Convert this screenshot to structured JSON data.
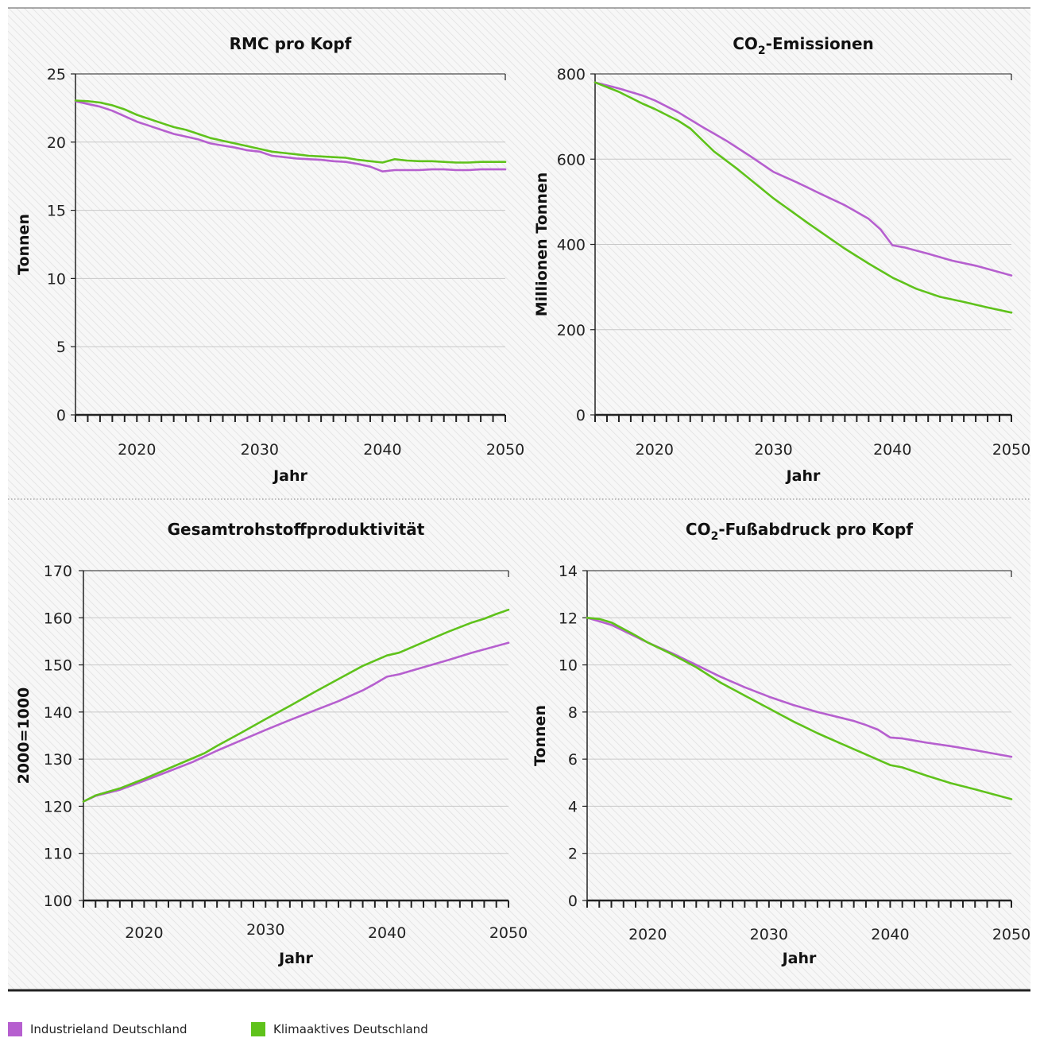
{
  "legend": [
    {
      "label": "Industrieland Deutschland",
      "color": "#b65fcf"
    },
    {
      "label": "Klimaaktives Deutschland",
      "color": "#5fc21b"
    }
  ],
  "chart_data": [
    {
      "type": "line",
      "title": "RMC pro Kopf",
      "xlabel": "Jahr",
      "ylabel": "Tonnen",
      "xlim": [
        2015,
        2050
      ],
      "ylim": [
        0,
        25
      ],
      "yticks": [
        0,
        5,
        10,
        15,
        20,
        25
      ],
      "xticks": [
        2020,
        2030,
        2040,
        2050
      ],
      "grid": true,
      "series": [
        {
          "name": "Industrieland Deutschland",
          "color": "#b65fcf",
          "x": [
            2015,
            2016,
            2017,
            2018,
            2019,
            2020,
            2021,
            2022,
            2023,
            2024,
            2025,
            2026,
            2027,
            2028,
            2029,
            2030,
            2031,
            2032,
            2033,
            2034,
            2035,
            2036,
            2037,
            2038,
            2039,
            2040,
            2041,
            2042,
            2043,
            2044,
            2045,
            2046,
            2047,
            2048,
            2049,
            2050
          ],
          "y": [
            23.0,
            22.8,
            22.6,
            22.3,
            21.9,
            21.5,
            21.2,
            20.9,
            20.6,
            20.4,
            20.2,
            19.9,
            19.75,
            19.6,
            19.4,
            19.3,
            19.0,
            18.9,
            18.8,
            18.75,
            18.7,
            18.6,
            18.55,
            18.4,
            18.2,
            17.85,
            17.95,
            17.95,
            17.95,
            18.0,
            18.0,
            17.95,
            17.95,
            18.0,
            18.0,
            18.0
          ]
        },
        {
          "name": "Klimaaktives Deutschland",
          "color": "#5fc21b",
          "x": [
            2015,
            2016,
            2017,
            2018,
            2019,
            2020,
            2021,
            2022,
            2023,
            2024,
            2025,
            2026,
            2027,
            2028,
            2029,
            2030,
            2031,
            2032,
            2033,
            2034,
            2035,
            2036,
            2037,
            2038,
            2039,
            2040,
            2041,
            2042,
            2043,
            2044,
            2045,
            2046,
            2047,
            2048,
            2049,
            2050
          ],
          "y": [
            23.05,
            23.0,
            22.9,
            22.7,
            22.4,
            22.0,
            21.7,
            21.4,
            21.1,
            20.9,
            20.6,
            20.3,
            20.1,
            19.9,
            19.7,
            19.5,
            19.3,
            19.2,
            19.1,
            19.0,
            18.95,
            18.9,
            18.85,
            18.7,
            18.6,
            18.5,
            18.75,
            18.65,
            18.6,
            18.6,
            18.55,
            18.5,
            18.5,
            18.55,
            18.55,
            18.55
          ]
        }
      ]
    },
    {
      "type": "line",
      "title": "CO₂-Emissionen",
      "xlabel": "Jahr",
      "ylabel": "Millionen Tonnen",
      "xlim": [
        2015,
        2050
      ],
      "ylim": [
        0,
        800
      ],
      "yticks": [
        0,
        200,
        400,
        600,
        800
      ],
      "xticks": [
        2020,
        2030,
        2040,
        2050
      ],
      "grid": true,
      "series": [
        {
          "name": "Industrieland Deutschland",
          "color": "#b65fcf",
          "x": [
            2015,
            2017,
            2019,
            2020,
            2022,
            2024,
            2026,
            2028,
            2030,
            2032,
            2034,
            2036,
            2038,
            2039,
            2040,
            2041,
            2043,
            2045,
            2047,
            2050
          ],
          "y": [
            780,
            766,
            749,
            738,
            710,
            676,
            644,
            608,
            570,
            545,
            518,
            492,
            460,
            435,
            398,
            393,
            378,
            362,
            350,
            327
          ]
        },
        {
          "name": "Klimaaktives Deutschland",
          "color": "#5fc21b",
          "x": [
            2015,
            2017,
            2019,
            2020,
            2022,
            2023,
            2025,
            2027,
            2030,
            2033,
            2036,
            2038,
            2040,
            2042,
            2044,
            2046,
            2048,
            2050
          ],
          "y": [
            780,
            758,
            730,
            718,
            690,
            672,
            618,
            576,
            508,
            448,
            390,
            355,
            322,
            296,
            277,
            265,
            252,
            240
          ]
        }
      ]
    },
    {
      "type": "line",
      "title": "Gesamtrohstoffproduktivität",
      "xlabel": "Jahr",
      "ylabel": "2000=1000",
      "xlim": [
        2015,
        2050
      ],
      "ylim": [
        100,
        170
      ],
      "yticks": [
        100,
        110,
        120,
        130,
        140,
        150,
        160,
        170
      ],
      "xticks": [
        2020,
        2030,
        2040,
        2050
      ],
      "grid": true,
      "series": [
        {
          "name": "Industrieland Deutschland",
          "color": "#b65fcf",
          "x": [
            2015,
            2016,
            2018,
            2020,
            2022,
            2024,
            2026,
            2028,
            2030,
            2032,
            2034,
            2036,
            2038,
            2039,
            2040,
            2041,
            2043,
            2045,
            2047,
            2050
          ],
          "y": [
            121,
            122.2,
            123.5,
            125.4,
            127.4,
            129.4,
            131.8,
            134.0,
            136.2,
            138.3,
            140.3,
            142.3,
            144.6,
            146.0,
            147.5,
            148.0,
            149.5,
            151.0,
            152.6,
            154.7
          ]
        },
        {
          "name": "Klimaaktives Deutschland",
          "color": "#5fc21b",
          "x": [
            2015,
            2016,
            2018,
            2020,
            2022,
            2024,
            2025,
            2026,
            2028,
            2030,
            2032,
            2034,
            2036,
            2038,
            2040,
            2041,
            2043,
            2045,
            2047,
            2048,
            2049,
            2050
          ],
          "y": [
            121,
            122.3,
            123.8,
            125.8,
            128.0,
            130.2,
            131.3,
            132.8,
            135.6,
            138.5,
            141.3,
            144.2,
            147.0,
            149.8,
            152.0,
            152.6,
            154.8,
            157.0,
            159.0,
            159.8,
            160.8,
            161.7
          ]
        }
      ]
    },
    {
      "type": "line",
      "title": "CO₂-Fußabdruck pro Kopf",
      "xlabel": "Jahr",
      "ylabel": "Tonnen",
      "xlim": [
        2015,
        2050
      ],
      "ylim": [
        0,
        14
      ],
      "yticks": [
        0,
        2,
        4,
        6,
        8,
        10,
        12,
        14
      ],
      "xticks": [
        2020,
        2030,
        2040,
        2050
      ],
      "grid": true,
      "series": [
        {
          "name": "Industrieland Deutschland",
          "color": "#b65fcf",
          "x": [
            2015,
            2017,
            2019,
            2020,
            2022,
            2024,
            2026,
            2028,
            2030,
            2032,
            2034,
            2036,
            2037,
            2038,
            2039,
            2040,
            2041,
            2043,
            2045,
            2047,
            2050
          ],
          "y": [
            12.0,
            11.7,
            11.2,
            10.95,
            10.5,
            10.0,
            9.5,
            9.05,
            8.65,
            8.3,
            8.0,
            7.75,
            7.62,
            7.45,
            7.25,
            6.92,
            6.88,
            6.7,
            6.55,
            6.38,
            6.1
          ]
        },
        {
          "name": "Klimaaktives Deutschland",
          "color": "#5fc21b",
          "x": [
            2015,
            2016,
            2017,
            2019,
            2020,
            2022,
            2024,
            2026,
            2028,
            2030,
            2032,
            2034,
            2036,
            2038,
            2040,
            2041,
            2043,
            2045,
            2047,
            2050
          ],
          "y": [
            12.0,
            11.95,
            11.8,
            11.25,
            10.95,
            10.45,
            9.9,
            9.25,
            8.7,
            8.15,
            7.6,
            7.1,
            6.65,
            6.2,
            5.75,
            5.65,
            5.3,
            4.98,
            4.72,
            4.3
          ]
        }
      ]
    }
  ]
}
